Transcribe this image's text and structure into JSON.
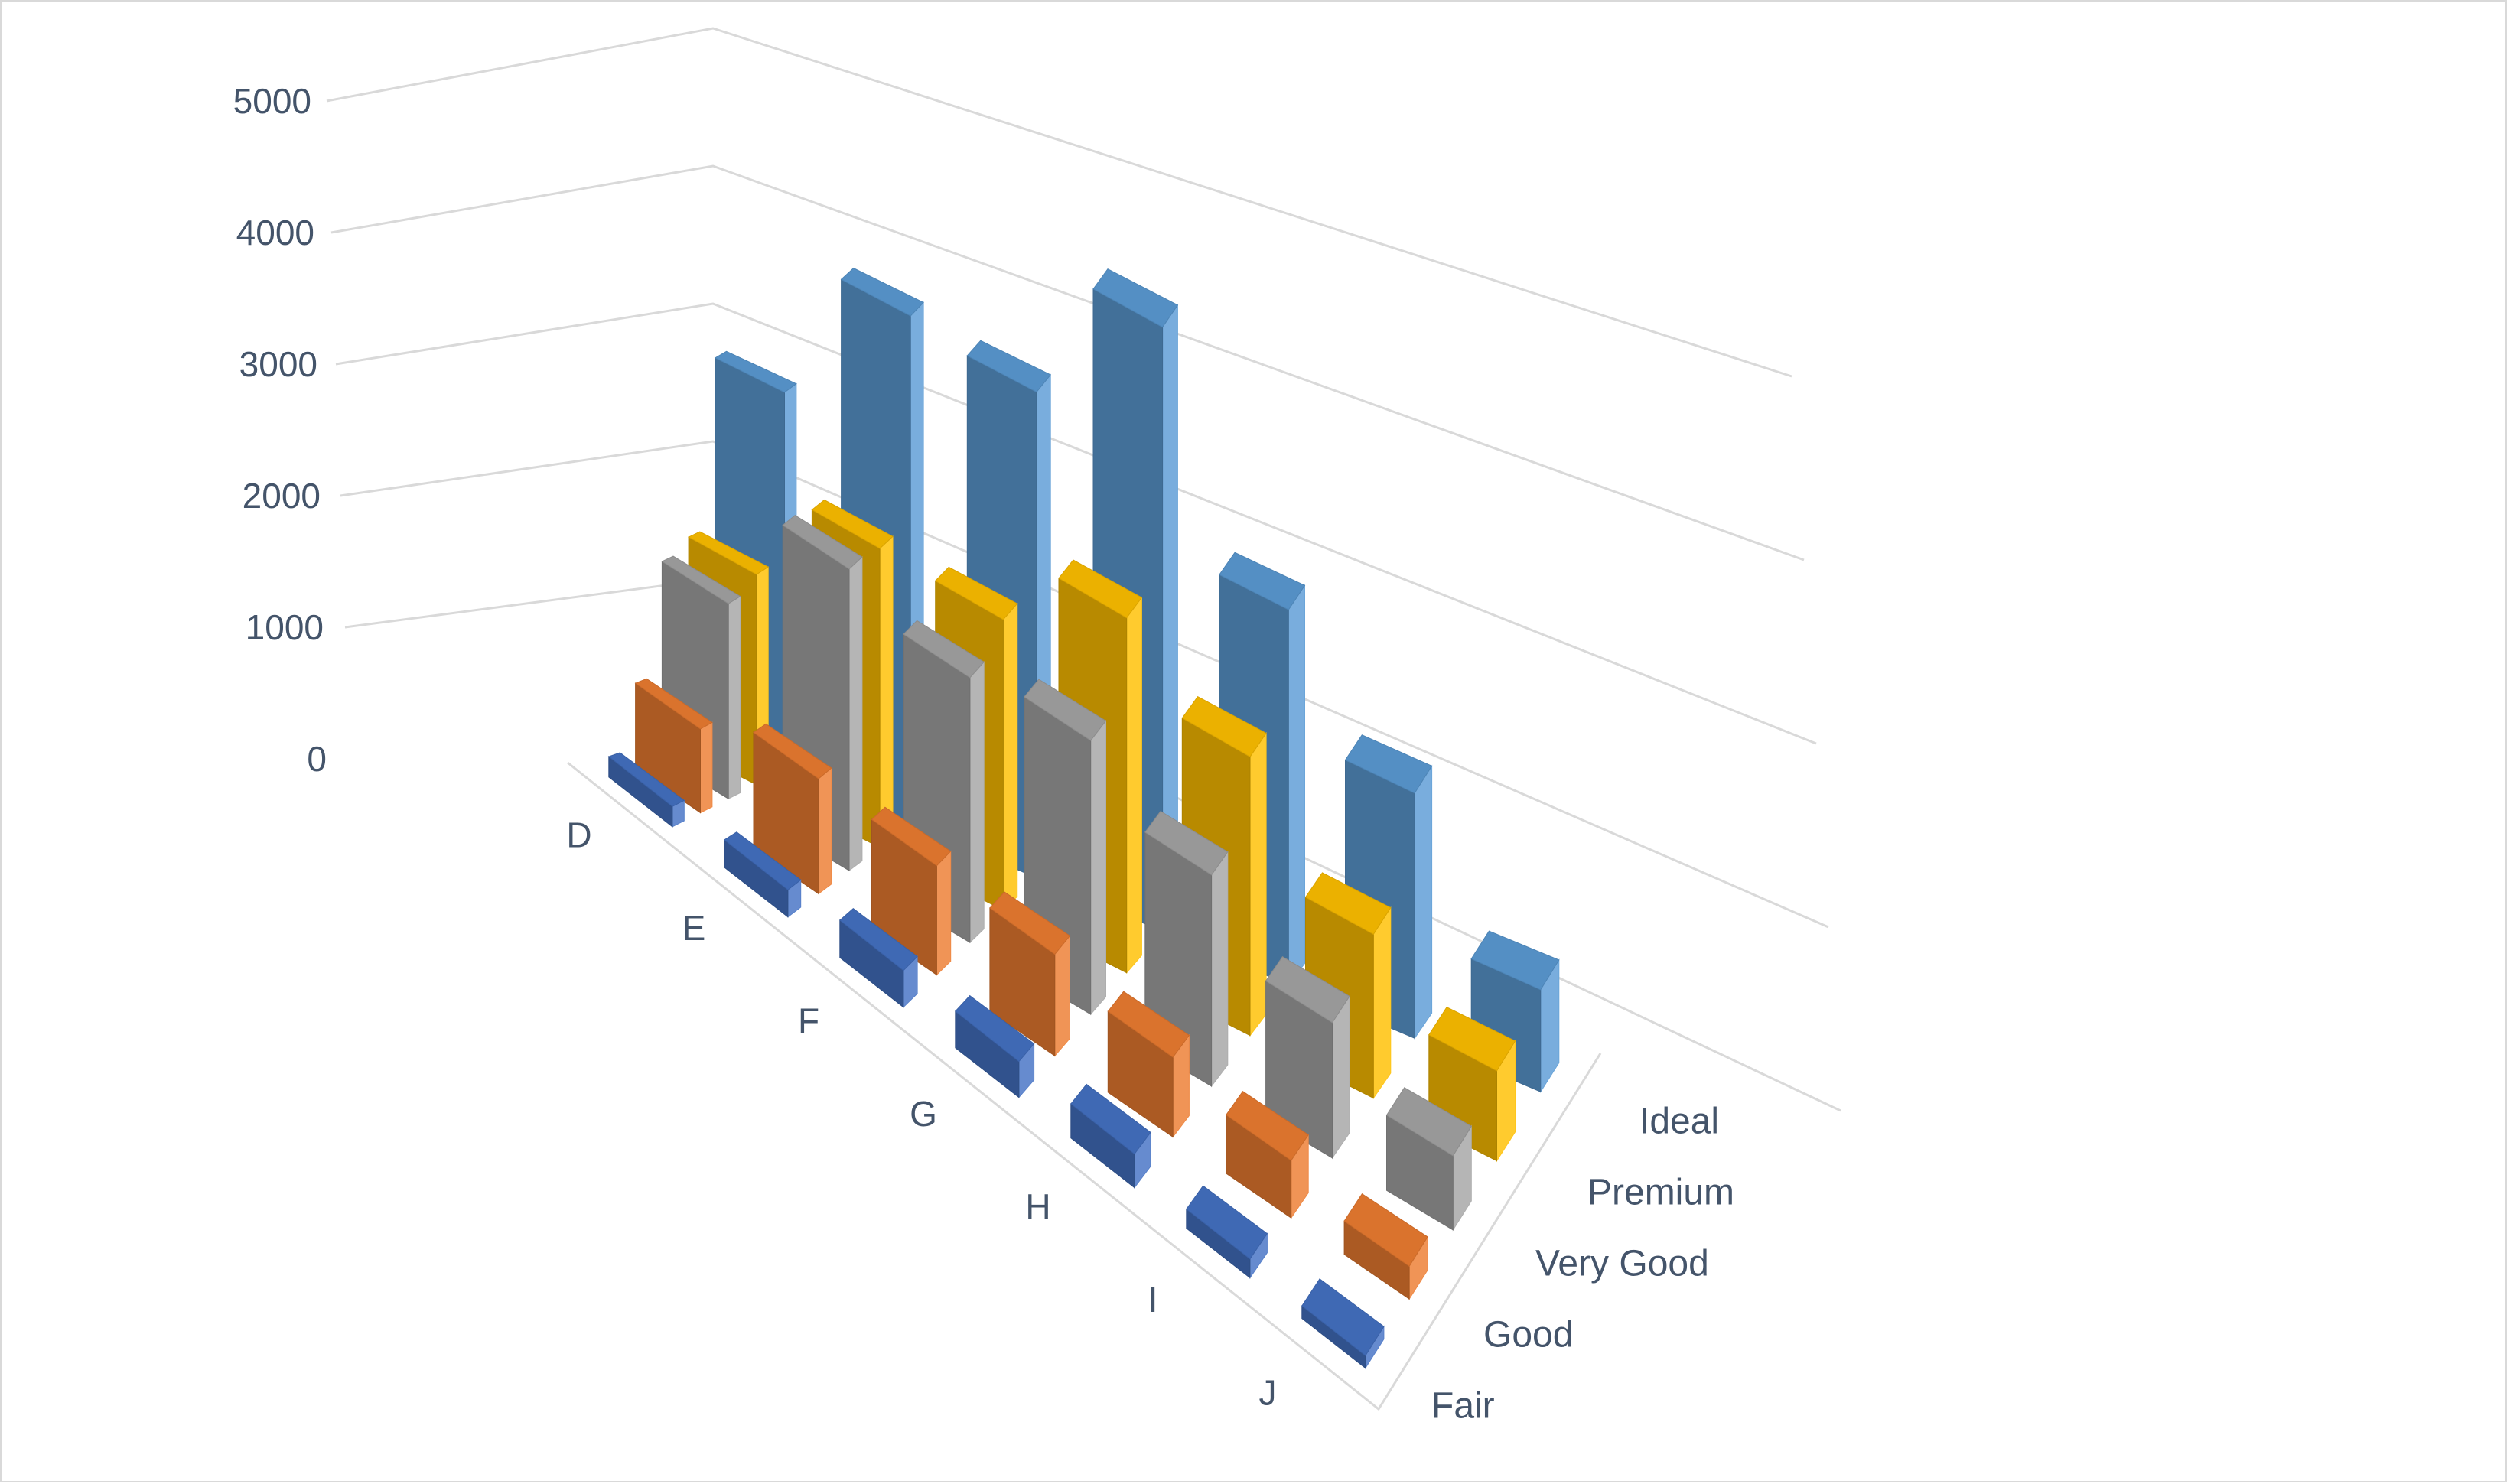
{
  "chart_data": {
    "type": "bar",
    "subtype": "3d-column",
    "title": "",
    "xlabel": "",
    "ylabel": "",
    "categories": [
      "D",
      "E",
      "F",
      "G",
      "H",
      "I",
      "J"
    ],
    "series": [
      {
        "name": "Fair",
        "color": "#4472c4",
        "values": [
          163,
          224,
          312,
          314,
          303,
          175,
          119
        ]
      },
      {
        "name": "Good",
        "color": "#ed7d31",
        "values": [
          662,
          933,
          909,
          871,
          702,
          522,
          307
        ]
      },
      {
        "name": "Very Good",
        "color": "#a5a5a5",
        "values": [
          1513,
          2400,
          2164,
          2299,
          1824,
          1204,
          678
        ]
      },
      {
        "name": "Premium",
        "color": "#ffc000",
        "values": [
          1603,
          2337,
          2331,
          2924,
          2360,
          1428,
          808
        ]
      },
      {
        "name": "Ideal",
        "color": "#5b9bd5",
        "values": [
          2834,
          3903,
          3826,
          4884,
          3115,
          2093,
          896
        ]
      }
    ],
    "ylim": [
      0,
      5000
    ],
    "yticks": [
      "0",
      "1000",
      "2000",
      "3000",
      "4000",
      "5000"
    ],
    "grid": true,
    "legend": "none"
  }
}
